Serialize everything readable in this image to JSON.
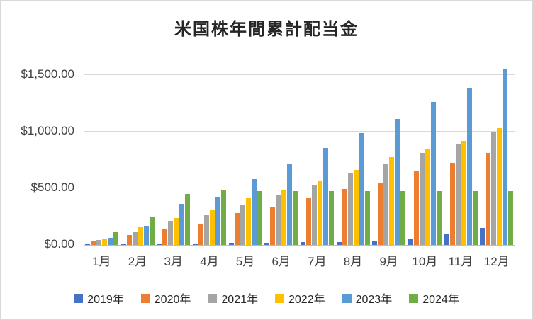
{
  "chart_data": {
    "type": "bar",
    "title": "米国株年間累計配当金",
    "xlabel": "",
    "ylabel": "",
    "grid": true,
    "legend_position": "bottom",
    "ylim": [
      0,
      1625
    ],
    "y_ticks": [
      "$0.00",
      "$500.00",
      "$1,000.00",
      "$1,500.00"
    ],
    "y_tick_values": [
      0,
      500,
      1000,
      1500
    ],
    "categories": [
      "1月",
      "2月",
      "3月",
      "4月",
      "5月",
      "6月",
      "7月",
      "8月",
      "9月",
      "10月",
      "11月",
      "12月"
    ],
    "series": [
      {
        "name": "2019年",
        "color": "#4472C4",
        "values": [
          5,
          8,
          12,
          15,
          18,
          20,
          22,
          25,
          30,
          50,
          95,
          150
        ]
      },
      {
        "name": "2020年",
        "color": "#ED7D31",
        "values": [
          30,
          90,
          135,
          185,
          280,
          335,
          420,
          495,
          550,
          650,
          725,
          810
        ]
      },
      {
        "name": "2021年",
        "color": "#A5A5A5",
        "values": [
          45,
          115,
          210,
          265,
          355,
          435,
          525,
          635,
          710,
          810,
          890,
          1000
        ]
      },
      {
        "name": "2022年",
        "color": "#FFC000",
        "values": [
          55,
          155,
          235,
          310,
          415,
          480,
          560,
          660,
          775,
          845,
          920,
          1030
        ]
      },
      {
        "name": "2023年",
        "color": "#5B9BD5",
        "values": [
          65,
          170,
          360,
          425,
          580,
          710,
          855,
          985,
          1115,
          1260,
          1380,
          1555
        ]
      },
      {
        "name": "2024年",
        "color": "#70AD47",
        "values": [
          115,
          250,
          450,
          480,
          472,
          475,
          475,
          475,
          475,
          475,
          475,
          475
        ]
      }
    ]
  }
}
